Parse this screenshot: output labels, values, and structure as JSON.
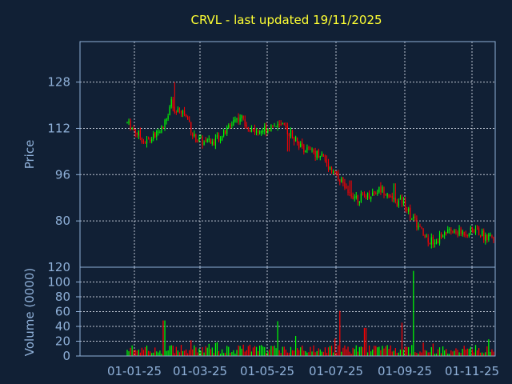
{
  "chart_data": {
    "type": "candlestick",
    "title": "CRVL - last updated 19/11/2025",
    "colors": {
      "background": "#112035",
      "up": "#00ff00",
      "down": "#ff0000",
      "axis": "#8fb0d8",
      "grid": "#e8eef8",
      "title": "#ffff33"
    },
    "price_panel": {
      "ylabel": "Price",
      "ylim": [
        64,
        142
      ],
      "yticks": [
        80,
        96,
        112,
        128
      ],
      "ytick_labels": [
        "80",
        "96",
        "112",
        "128"
      ],
      "grid": true
    },
    "volume_panel": {
      "ylabel": "Volume (0000)",
      "ylim": [
        0,
        120
      ],
      "yticks": [
        0,
        20,
        40,
        60,
        80,
        100,
        120
      ],
      "ytick_labels": [
        "0",
        "20",
        "40",
        "60",
        "80",
        "100",
        "120"
      ],
      "grid": true
    },
    "xticks": [
      "01-01-25",
      "01-03-25",
      "01-05-25",
      "01-07-25",
      "01-09-25",
      "01-11-25"
    ],
    "price_path": [
      {
        "x": 0.0,
        "price": 114
      },
      {
        "x": 0.03,
        "price": 110
      },
      {
        "x": 0.05,
        "price": 107
      },
      {
        "x": 0.08,
        "price": 110
      },
      {
        "x": 0.1,
        "price": 113
      },
      {
        "x": 0.12,
        "price": 121
      },
      {
        "x": 0.13,
        "price": 117
      },
      {
        "x": 0.15,
        "price": 118
      },
      {
        "x": 0.17,
        "price": 114
      },
      {
        "x": 0.18,
        "price": 109
      },
      {
        "x": 0.21,
        "price": 107
      },
      {
        "x": 0.23,
        "price": 107
      },
      {
        "x": 0.25,
        "price": 109
      },
      {
        "x": 0.27,
        "price": 111
      },
      {
        "x": 0.29,
        "price": 115
      },
      {
        "x": 0.31,
        "price": 116
      },
      {
        "x": 0.33,
        "price": 113
      },
      {
        "x": 0.35,
        "price": 111
      },
      {
        "x": 0.38,
        "price": 112
      },
      {
        "x": 0.4,
        "price": 113
      },
      {
        "x": 0.43,
        "price": 112
      },
      {
        "x": 0.45,
        "price": 110
      },
      {
        "x": 0.47,
        "price": 106
      },
      {
        "x": 0.5,
        "price": 104
      },
      {
        "x": 0.53,
        "price": 103
      },
      {
        "x": 0.55,
        "price": 99
      },
      {
        "x": 0.58,
        "price": 95
      },
      {
        "x": 0.6,
        "price": 90
      },
      {
        "x": 0.63,
        "price": 88
      },
      {
        "x": 0.66,
        "price": 89
      },
      {
        "x": 0.69,
        "price": 91
      },
      {
        "x": 0.71,
        "price": 90
      },
      {
        "x": 0.73,
        "price": 86
      },
      {
        "x": 0.75,
        "price": 87
      },
      {
        "x": 0.77,
        "price": 83
      },
      {
        "x": 0.79,
        "price": 79
      },
      {
        "x": 0.81,
        "price": 75
      },
      {
        "x": 0.83,
        "price": 73
      },
      {
        "x": 0.85,
        "price": 74
      },
      {
        "x": 0.87,
        "price": 76
      },
      {
        "x": 0.9,
        "price": 76
      },
      {
        "x": 0.93,
        "price": 76
      },
      {
        "x": 0.95,
        "price": 77
      },
      {
        "x": 0.97,
        "price": 75
      },
      {
        "x": 1.0,
        "price": 74
      }
    ],
    "price_spikes": [
      {
        "x": 0.13,
        "high": 128
      },
      {
        "x": 0.44,
        "low": 104
      },
      {
        "x": 0.61,
        "high": 94
      },
      {
        "x": 0.73,
        "high": 93
      }
    ],
    "volume_spikes": [
      {
        "x": 0.1,
        "volume": 48
      },
      {
        "x": 0.41,
        "volume": 47
      },
      {
        "x": 0.58,
        "volume": 61
      },
      {
        "x": 0.65,
        "volume": 38
      },
      {
        "x": 0.78,
        "volume": 115
      },
      {
        "x": 0.75,
        "volume": 45
      }
    ]
  }
}
